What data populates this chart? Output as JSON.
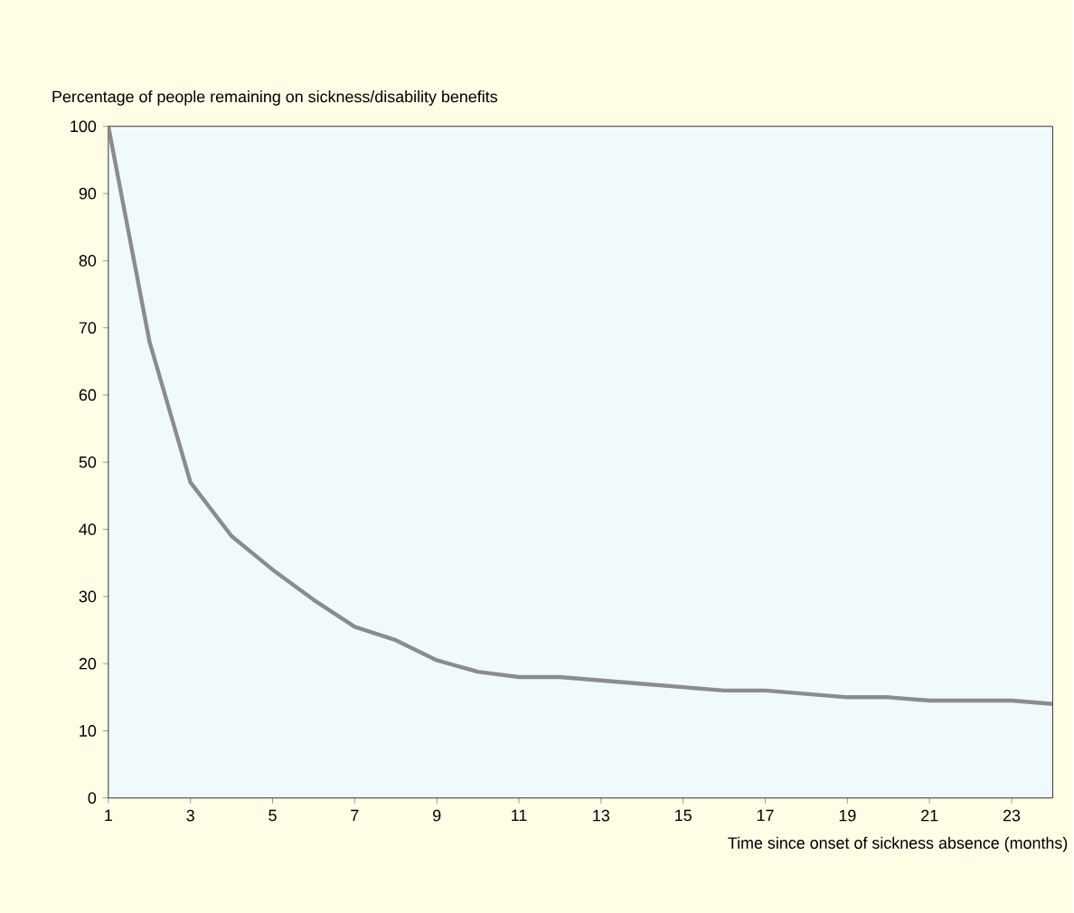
{
  "chart_data": {
    "type": "line",
    "ylabel": "Percentage of people remaining on sickness/disability benefits",
    "xlabel": "Time since onset of sickness absence (months)",
    "x": [
      1,
      2,
      3,
      4,
      5,
      6,
      7,
      8,
      9,
      10,
      11,
      12,
      13,
      14,
      15,
      16,
      17,
      18,
      19,
      20,
      21,
      22,
      23,
      24
    ],
    "series": [
      {
        "color": "#8c8c8c",
        "values": [
          100,
          68,
          47,
          39,
          34,
          29.5,
          25.5,
          23.5,
          20.5,
          18.8,
          18,
          18,
          17.5,
          17,
          16.5,
          16,
          16,
          15.5,
          15,
          15,
          14.5,
          14.5,
          14.5,
          14
        ]
      }
    ],
    "xlim": [
      1,
      24
    ],
    "ylim": [
      0,
      100
    ],
    "xticks": [
      1,
      3,
      5,
      7,
      9,
      11,
      13,
      15,
      17,
      19,
      21,
      23
    ],
    "yticks": [
      0,
      10,
      20,
      30,
      40,
      50,
      60,
      70,
      80,
      90,
      100
    ],
    "marker": "none",
    "line_style": "solid"
  }
}
